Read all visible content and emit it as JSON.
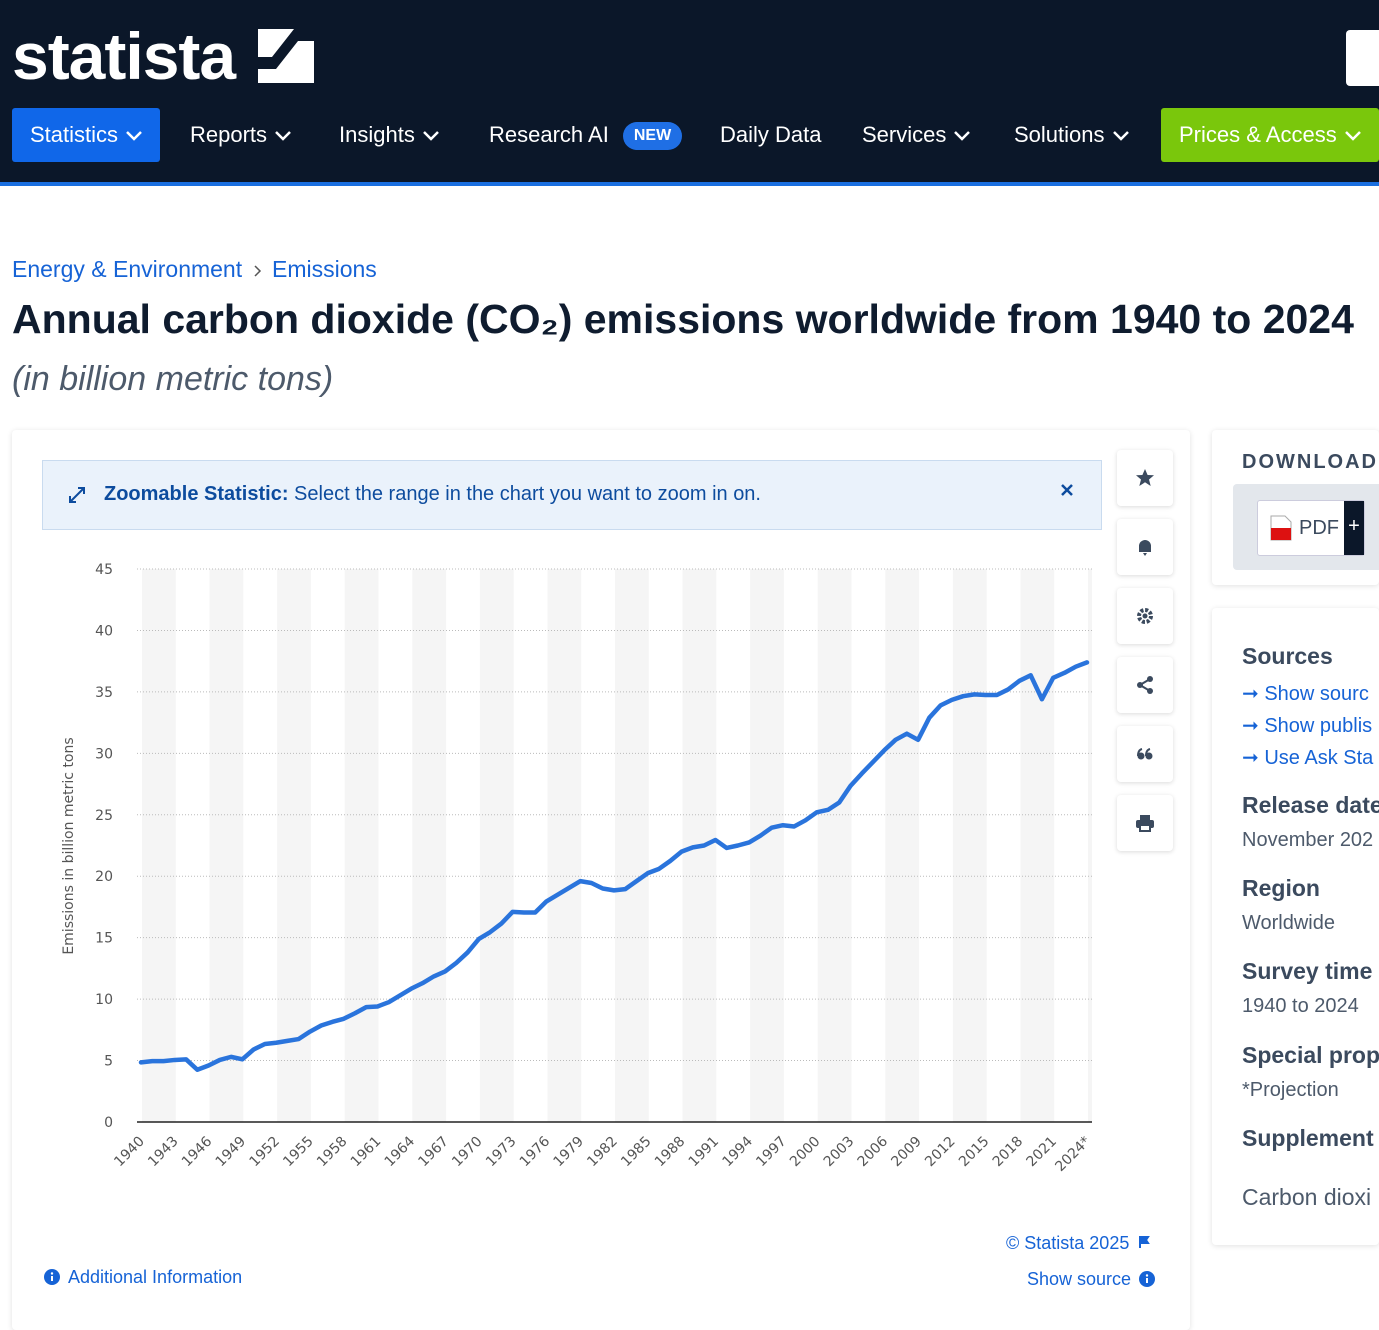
{
  "header": {
    "logo": "statista",
    "nav": [
      "Statistics",
      "Reports",
      "Insights",
      "Research AI",
      "Daily Data",
      "Services",
      "Solutions",
      "Prices & Access"
    ],
    "badge": "NEW"
  },
  "breadcrumb": [
    "Energy & Environment",
    "Emissions"
  ],
  "title": "Annual carbon dioxide (CO₂) emissions worldwide from 1940 to 2024",
  "subtitle": "(in billion metric tons)",
  "zoom_notice": {
    "label": "Zoomable Statistic:",
    "text": "Select the range in the chart you want to zoom in on."
  },
  "chart_data": {
    "type": "line",
    "categories": [
      "1940",
      null,
      null,
      "1943",
      null,
      null,
      "1946",
      null,
      null,
      "1949",
      null,
      null,
      "1952",
      null,
      null,
      "1955",
      null,
      null,
      "1958",
      null,
      null,
      "1961",
      null,
      null,
      "1964",
      null,
      null,
      "1967",
      null,
      null,
      "1970",
      null,
      null,
      "1973",
      null,
      null,
      "1976",
      null,
      null,
      "1979",
      null,
      null,
      "1982",
      null,
      null,
      "1985",
      null,
      null,
      "1988",
      null,
      null,
      "1991",
      null,
      null,
      "1994",
      null,
      null,
      "1997",
      null,
      null,
      "2000",
      null,
      null,
      "2003",
      null,
      null,
      "2006",
      null,
      null,
      "2009",
      null,
      null,
      "2012",
      null,
      null,
      "2015",
      null,
      null,
      "2018",
      null,
      null,
      "2021",
      null,
      null,
      "2024*"
    ],
    "series": [
      {
        "color": "#2a74dc",
        "values": [
          4.85,
          4.95,
          4.95,
          5.05,
          5.1,
          4.25,
          4.6,
          5.05,
          5.3,
          5.1,
          5.9,
          6.35,
          6.45,
          6.6,
          6.75,
          7.35,
          7.85,
          8.15,
          8.4,
          8.85,
          9.35,
          9.4,
          9.75,
          10.3,
          10.85,
          11.3,
          11.85,
          12.25,
          12.95,
          13.8,
          14.9,
          15.45,
          16.15,
          17.1,
          17.05,
          17.05,
          17.95,
          18.5,
          19.05,
          19.6,
          19.45,
          19.0,
          18.85,
          18.95,
          19.6,
          20.25,
          20.6,
          21.25,
          22.0,
          22.35,
          22.5,
          22.95,
          22.3,
          22.5,
          22.75,
          23.3,
          23.95,
          24.15,
          24.05,
          24.55,
          25.2,
          25.4,
          26.0,
          27.35,
          28.35,
          29.3,
          30.25,
          31.1,
          31.6,
          31.1,
          32.9,
          33.9,
          34.35,
          34.65,
          34.8,
          34.75,
          34.75,
          35.2,
          35.9,
          36.35,
          34.4,
          36.15,
          36.55,
          37.05,
          37.4
        ]
      }
    ],
    "ylabel": "Emissions in billion metric tons",
    "ylim": [
      0,
      45
    ],
    "yticks": [
      0,
      5,
      10,
      15,
      20,
      25,
      30,
      35,
      40,
      45
    ],
    "grid": true
  },
  "footer": {
    "copyright": "© Statista 2025",
    "show_source": "Show source",
    "additional_info": "Additional Information"
  },
  "sidebar": {
    "download": "DOWNLOAD",
    "pdf": "PDF",
    "plus": "+",
    "sources": {
      "heading": "Sources",
      "links": [
        "Show sourc",
        "Show publis",
        "Use Ask Sta"
      ]
    },
    "details": [
      {
        "heading": "Release date",
        "value": "November 202"
      },
      {
        "heading": "Region",
        "value": "Worldwide"
      },
      {
        "heading": "Survey time",
        "value": "1940 to 2024"
      },
      {
        "heading": "Special prop",
        "value": "*Projection"
      },
      {
        "heading": "Supplement",
        "value": "Carbon dioxi"
      }
    ]
  }
}
